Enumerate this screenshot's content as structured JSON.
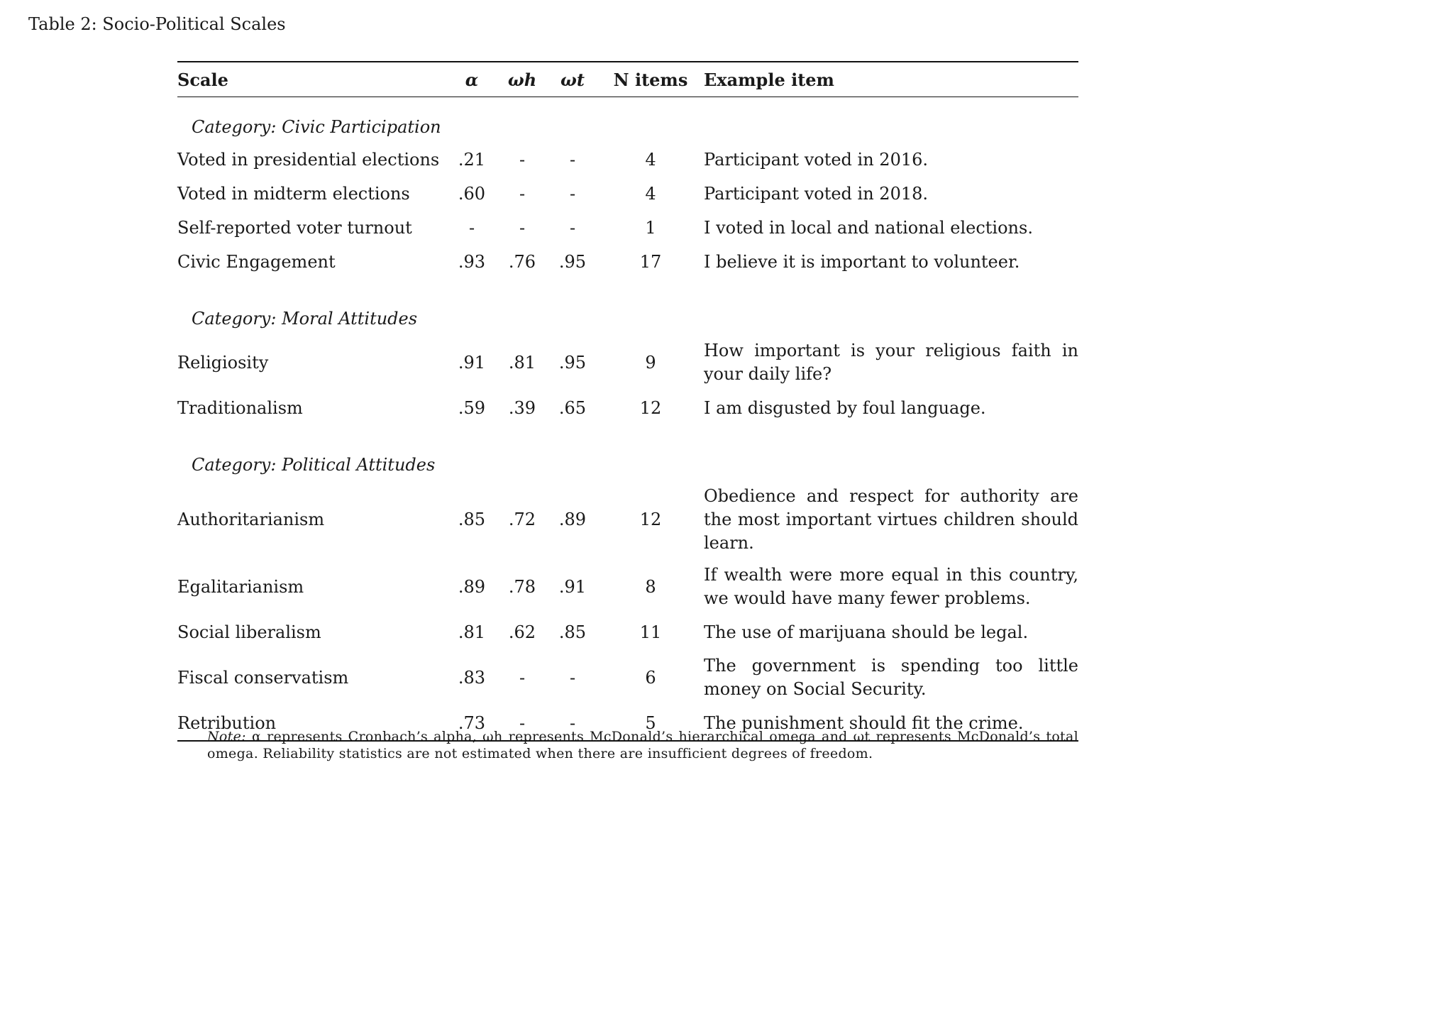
{
  "caption": "Table 2: Socio-Political Scales",
  "headers": {
    "scale": "Scale",
    "alpha": "α",
    "omega_h": "ωh",
    "omega_t": "ωt",
    "n_items": "N items",
    "example": "Example item"
  },
  "categories": [
    {
      "label": "Category: Civic Participation",
      "rows": [
        {
          "scale": "Voted in presidential elections",
          "alpha": ".21",
          "omega_h": "-",
          "omega_t": "-",
          "n": "4",
          "example": "Participant voted in 2016."
        },
        {
          "scale": "Voted in midterm elections",
          "alpha": ".60",
          "omega_h": "-",
          "omega_t": "-",
          "n": "4",
          "example": "Participant voted in 2018."
        },
        {
          "scale": "Self-reported voter turnout",
          "alpha": "-",
          "omega_h": "-",
          "omega_t": "-",
          "n": "1",
          "example": "I voted in local and national elections."
        },
        {
          "scale": "Civic Engagement",
          "alpha": ".93",
          "omega_h": ".76",
          "omega_t": ".95",
          "n": "17",
          "example": "I believe it is important to volunteer."
        }
      ]
    },
    {
      "label": "Category: Moral Attitudes",
      "rows": [
        {
          "scale": "Religiosity",
          "alpha": ".91",
          "omega_h": ".81",
          "omega_t": ".95",
          "n": "9",
          "example": "How important is your religious faith in your daily life?"
        },
        {
          "scale": "Traditionalism",
          "alpha": ".59",
          "omega_h": ".39",
          "omega_t": ".65",
          "n": "12",
          "example": "I am disgusted by foul language."
        }
      ]
    },
    {
      "label": "Category: Political Attitudes",
      "rows": [
        {
          "scale": "Authoritarianism",
          "alpha": ".85",
          "omega_h": ".72",
          "omega_t": ".89",
          "n": "12",
          "example": "Obedience and respect for authority are the most important virtues children should learn."
        },
        {
          "scale": "Egalitarianism",
          "alpha": ".89",
          "omega_h": ".78",
          "omega_t": ".91",
          "n": "8",
          "example": "If wealth were more equal in this country, we would have many fewer problems."
        },
        {
          "scale": "Social liberalism",
          "alpha": ".81",
          "omega_h": ".62",
          "omega_t": ".85",
          "n": "11",
          "example": "The use of marijuana should be legal."
        },
        {
          "scale": "Fiscal conservatism",
          "alpha": ".83",
          "omega_h": "-",
          "omega_t": "-",
          "n": "6",
          "example": "The government is spending too little money on Social Security."
        },
        {
          "scale": "Retribution",
          "alpha": ".73",
          "omega_h": "-",
          "omega_t": "-",
          "n": "5",
          "example": "The punishment should fit the crime."
        }
      ]
    }
  ],
  "note": {
    "label": "Note:",
    "text": "α represents Cronbach’s alpha, ωh represents McDonald’s hierarchical omega and ωt represents McDonald’s total omega. Reliability statistics are not estimated when there are insufficient degrees of freedom."
  }
}
